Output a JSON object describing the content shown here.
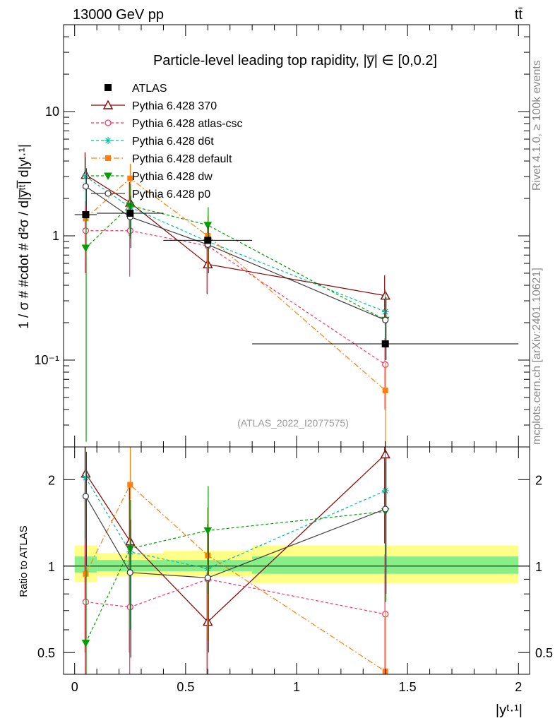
{
  "header": {
    "energy_label": "13000 GeV pp",
    "process_label": "tt̄"
  },
  "side_text": {
    "rivet": "Rivet 4.1.0, ≥ 100k events",
    "mcplots": "mcplots.cern.ch [arXiv:2401.10621]"
  },
  "chart_data": [
    {
      "type": "line",
      "name": "main",
      "title": "Particle-level leading top rapidity, |y̅| ∈ [0,0.2]",
      "analysis_id": "(ATLAS_2022_I2077575)",
      "ylabel": "1 / σ # #cdot # d²σ / d|y̅ᵗᵗ̅| d|yᵗ·¹|",
      "yscale": "log",
      "xlim": [
        -0.05,
        2.05
      ],
      "ylim": [
        0.02,
        50
      ],
      "y_ticks": [
        {
          "value": 10,
          "label": "10"
        },
        {
          "value": 1,
          "label": "1"
        },
        {
          "value": 0.1,
          "label": "10⁻¹"
        }
      ],
      "data": {
        "name": "ATLAS",
        "x": [
          0.05,
          0.25,
          0.6,
          1.4
        ],
        "y": [
          1.48,
          1.52,
          0.92,
          0.135
        ],
        "xerr": [
          0.05,
          0.15,
          0.2,
          0.6
        ]
      },
      "series": [
        {
          "name": "Pythia 6.428 370",
          "color": "#8b0000",
          "dash": "",
          "marker": "triangle",
          "x": [
            0.05,
            0.25,
            0.6,
            1.4
          ],
          "y": [
            3.1,
            1.85,
            0.59,
            0.33
          ],
          "err_lo": [
            3.1,
            1.0,
            0.34,
            0.2
          ],
          "err_hi": [
            4.7,
            2.7,
            0.85,
            0.48
          ]
        },
        {
          "name": "Pythia 6.428 atlas-csc",
          "color": "#ff3366",
          "dash": "4,3",
          "marker": "circle-open",
          "x": [
            0.05,
            0.25,
            0.6,
            1.4
          ],
          "y": [
            1.1,
            1.1,
            0.83,
            0.092
          ],
          "err_lo": [
            0.5,
            0.47,
            0.35,
            0.04
          ],
          "err_hi": [
            1.9,
            1.75,
            1.3,
            0.15
          ]
        },
        {
          "name": "Pythia 6.428 d6t",
          "color": "#00c0a0",
          "dash": "4,3",
          "marker": "star",
          "x": [
            0.05,
            0.25,
            0.6,
            1.4
          ],
          "y": [
            3.0,
            1.7,
            0.9,
            0.245
          ],
          "err_lo": [
            1.7,
            1.0,
            0.55,
            0.12
          ],
          "err_hi": [
            4.3,
            2.5,
            1.3,
            0.37
          ]
        },
        {
          "name": "Pythia 6.428 default",
          "color": "#ff7f0e",
          "dash": "8,3,2,3",
          "marker": "square",
          "x": [
            0.05,
            0.25,
            0.6,
            1.4
          ],
          "y": [
            1.38,
            2.9,
            1.0,
            0.057
          ],
          "err_lo": [
            0.6,
            2.0,
            0.55,
            0.018
          ],
          "err_hi": [
            2.2,
            3.8,
            1.45,
            0.095
          ]
        },
        {
          "name": "Pythia 6.428 dw",
          "color": "#00a000",
          "dash": "4,3",
          "marker": "triangle-down",
          "x": [
            0.05,
            0.25,
            0.6,
            1.4
          ],
          "y": [
            0.8,
            1.75,
            1.22,
            0.21
          ],
          "err_lo": [
            0.022,
            0.95,
            0.75,
            0.1
          ],
          "err_hi": [
            1.6,
            2.6,
            1.7,
            0.32
          ]
        },
        {
          "name": "Pythia 6.428 p0",
          "color": "#404040",
          "dash": "",
          "marker": "circle-open",
          "x": [
            0.05,
            0.25,
            0.6,
            1.4
          ],
          "y": [
            2.5,
            1.42,
            0.85,
            0.21
          ],
          "err_lo": [
            1.5,
            0.8,
            0.5,
            0.1
          ],
          "err_hi": [
            3.5,
            2.1,
            1.2,
            0.32
          ]
        }
      ]
    },
    {
      "type": "line",
      "name": "ratio",
      "ylabel": "Ratio to ATLAS",
      "xlabel": "|yᵗ·¹|",
      "yscale": "log",
      "xlim": [
        -0.05,
        2.05
      ],
      "ylim": [
        0.42,
        2.6
      ],
      "y_ticks": [
        {
          "value": 2,
          "label": "2"
        },
        {
          "value": 1,
          "label": "1"
        },
        {
          "value": 0.5,
          "label": "0.5"
        }
      ],
      "x_ticks": [
        {
          "value": 0,
          "label": "0"
        },
        {
          "value": 0.5,
          "label": "0.5"
        },
        {
          "value": 1,
          "label": "1"
        },
        {
          "value": 1.5,
          "label": "1.5"
        },
        {
          "value": 2,
          "label": "2"
        }
      ],
      "bands": [
        {
          "x0": 0.0,
          "x1": 0.1,
          "yellow": [
            0.88,
            1.18
          ],
          "green": [
            0.95,
            1.08
          ]
        },
        {
          "x0": 0.1,
          "x1": 0.4,
          "yellow": [
            0.92,
            1.11
          ],
          "green": [
            0.96,
            1.05
          ]
        },
        {
          "x0": 0.4,
          "x1": 0.8,
          "yellow": [
            0.92,
            1.13
          ],
          "green": [
            0.96,
            1.05
          ]
        },
        {
          "x0": 0.8,
          "x1": 2.0,
          "yellow": [
            0.87,
            1.18
          ],
          "green": [
            0.94,
            1.08
          ]
        }
      ],
      "series": [
        {
          "name": "Pythia 6.428 370",
          "color": "#8b0000",
          "dash": "",
          "marker": "triangle",
          "x": [
            0.05,
            0.25,
            0.6,
            1.4
          ],
          "y": [
            2.1,
            1.22,
            0.64,
            2.45
          ],
          "err_lo": [
            0.5,
            0.5,
            0.35,
            1.2
          ],
          "err_hi": [
            2.6,
            1.9,
            0.95,
            2.6
          ]
        },
        {
          "name": "Pythia 6.428 atlas-csc",
          "color": "#ff3366",
          "dash": "4,3",
          "marker": "circle-open",
          "x": [
            0.05,
            0.25,
            0.6,
            1.4
          ],
          "y": [
            0.75,
            0.72,
            0.9,
            0.68
          ],
          "err_lo": [
            0.42,
            0.42,
            0.42,
            0.42
          ],
          "err_hi": [
            1.25,
            1.15,
            1.4,
            1.1
          ]
        },
        {
          "name": "Pythia 6.428 d6t",
          "color": "#00c0a0",
          "dash": "4,3",
          "marker": "star",
          "x": [
            0.05,
            0.25,
            0.6,
            1.4
          ],
          "y": [
            2.03,
            1.12,
            0.98,
            1.83
          ],
          "err_lo": [
            1.2,
            0.6,
            0.58,
            0.9
          ],
          "err_hi": [
            2.6,
            1.7,
            1.6,
            2.6
          ]
        },
        {
          "name": "Pythia 6.428 default",
          "color": "#ff7f0e",
          "dash": "8,3,2,3",
          "marker": "square",
          "x": [
            0.05,
            0.25,
            0.6,
            1.4
          ],
          "y": [
            0.94,
            1.92,
            1.09,
            0.43
          ],
          "err_lo": [
            0.45,
            1.2,
            0.55,
            0.42
          ],
          "err_hi": [
            1.5,
            2.6,
            1.6,
            0.7
          ]
        },
        {
          "name": "Pythia 6.428 dw",
          "color": "#00a000",
          "dash": "4,3",
          "marker": "triangle-down",
          "x": [
            0.05,
            0.25,
            0.6,
            1.4
          ],
          "y": [
            0.54,
            1.15,
            1.33,
            1.55
          ],
          "err_lo": [
            0.42,
            0.6,
            0.8,
            0.75
          ],
          "err_hi": [
            1.1,
            1.7,
            1.9,
            2.3
          ]
        },
        {
          "name": "Pythia 6.428 p0",
          "color": "#404040",
          "dash": "",
          "marker": "circle-open",
          "x": [
            0.05,
            0.25,
            0.6,
            1.4
          ],
          "y": [
            1.75,
            0.95,
            0.91,
            1.58
          ],
          "err_lo": [
            1.0,
            0.48,
            0.5,
            0.8
          ],
          "err_hi": [
            2.5,
            1.45,
            1.3,
            2.4
          ]
        }
      ]
    }
  ]
}
